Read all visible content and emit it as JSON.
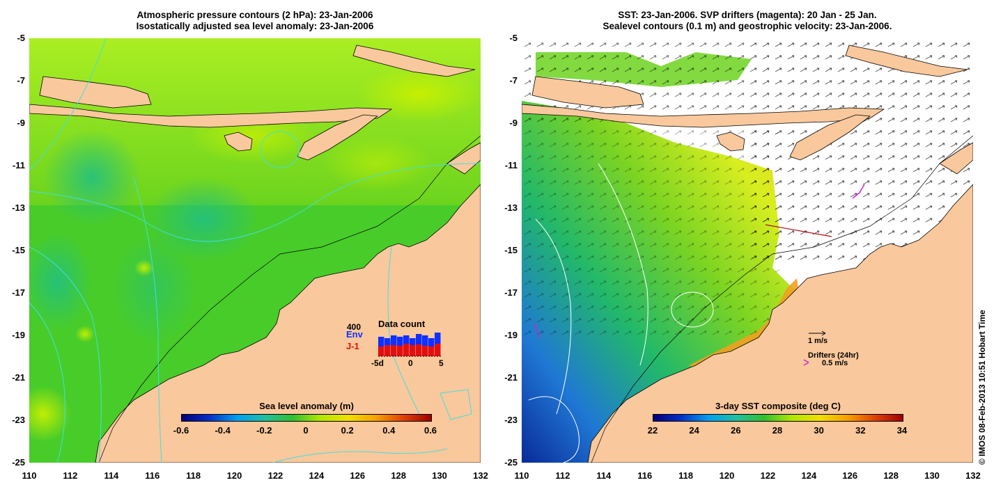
{
  "left_panel": {
    "title_line1": "Atmospheric pressure contours (2 hPa): 23-Jan-2006",
    "title_line2": "Isostatically adjusted sea level anomaly: 23-Jan-2006",
    "colorbar_title": "Sea level anomaly (m)",
    "colorbar_ticks": [
      "-0.6",
      "-0.4",
      "-0.2",
      "0",
      "0.2",
      "0.4",
      "0.6"
    ],
    "data_count": {
      "title": "Data count",
      "max_label": "400",
      "env_label": "Env",
      "j1_label": "J-1",
      "x_ticks": [
        "-5d",
        "0",
        "5"
      ],
      "env_color": "#1030ff",
      "j1_color": "#e01010"
    }
  },
  "right_panel": {
    "title_line1": "SST: 23-Jan-2006. SVP drifters (magenta): 20 Jan - 25 Jan.",
    "title_line2": "Sealevel contours (0.1 m) and geostrophic velocity: 23-Jan-2006.",
    "colorbar_title": "3-day SST composite (deg C)",
    "colorbar_ticks": [
      "22",
      "24",
      "26",
      "28",
      "30",
      "32",
      "34"
    ],
    "velocity_scale_label": "1 m/s",
    "drifters_label": "Drifters (24hr)",
    "drifter_scale_label": "0.5 m/s",
    "drifter_color": "#d020d0"
  },
  "axes": {
    "lat_ticks": [
      "-5",
      "-7",
      "-9",
      "-11",
      "-13",
      "-15",
      "-17",
      "-19",
      "-21",
      "-23",
      "-25"
    ],
    "lon_ticks": [
      "110",
      "112",
      "114",
      "116",
      "118",
      "120",
      "122",
      "124",
      "126",
      "128",
      "130",
      "132"
    ]
  },
  "colors": {
    "land": "#f9c89c",
    "sea_anomaly_base": "#44cc22",
    "contour": "#40e0e0"
  },
  "copyright": "© IMOS 08-Feb-2013 10:51 Hobart Time"
}
